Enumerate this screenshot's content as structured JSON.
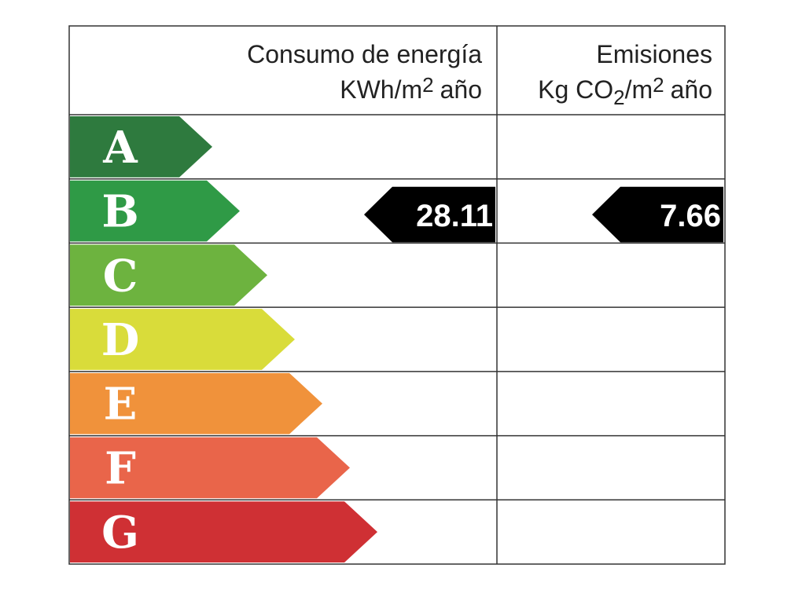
{
  "energy_header": {
    "title": "Consumo de energía",
    "unit_parts": [
      "KWh/m",
      "2",
      "año"
    ]
  },
  "emissions_header": {
    "title": "Emisiones",
    "unit_parts": [
      "Kg CO",
      "2",
      "/m",
      "2",
      "año"
    ]
  },
  "rows": [
    {
      "letter": "A",
      "color": "#2e7a3e",
      "energy": null,
      "emissions": null
    },
    {
      "letter": "B",
      "color": "#2f9a46",
      "energy": 28.11,
      "emissions": 7.66
    },
    {
      "letter": "C",
      "color": "#6db33f",
      "energy": null,
      "emissions": null
    },
    {
      "letter": "D",
      "color": "#d9dc3a",
      "energy": null,
      "emissions": null
    },
    {
      "letter": "E",
      "color": "#f0923b",
      "energy": null,
      "emissions": null
    },
    {
      "letter": "F",
      "color": "#e9654a",
      "energy": null,
      "emissions": null
    },
    {
      "letter": "G",
      "color": "#cf3034",
      "energy": null,
      "emissions": null
    }
  ]
}
